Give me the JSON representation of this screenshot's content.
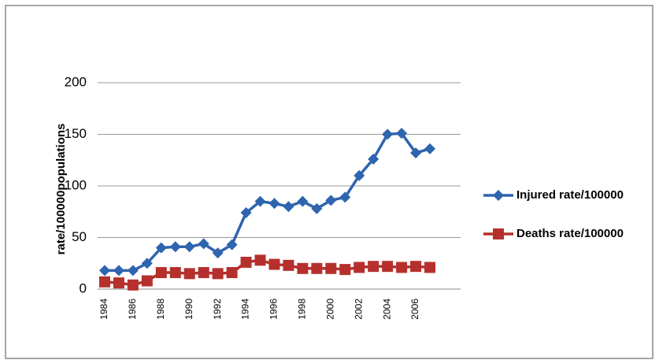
{
  "chart_data": {
    "type": "line",
    "y_label": "rate/100000populations",
    "categories": [
      "1984",
      null,
      "1986",
      null,
      "1988",
      null,
      "1990",
      null,
      "1992",
      null,
      "1994",
      null,
      "1996",
      null,
      "1998",
      null,
      "2000",
      null,
      "2002",
      null,
      "2004",
      null,
      "2006",
      null
    ],
    "series": [
      {
        "name": "Injured rate/100000",
        "color": "#2f64ae",
        "marker": "diamond",
        "values": [
          18,
          18,
          18,
          25,
          40,
          41,
          41,
          44,
          35,
          43,
          74,
          85,
          83,
          80,
          85,
          78,
          86,
          89,
          110,
          126,
          150,
          151,
          132,
          136
        ]
      },
      {
        "name": "Deaths rate/100000",
        "color": "#b5302c",
        "marker": "square",
        "values": [
          7,
          6,
          4,
          8,
          16,
          16,
          15,
          16,
          15,
          16,
          26,
          28,
          24,
          23,
          20,
          20,
          20,
          19,
          21,
          22,
          22,
          21,
          22,
          21
        ]
      }
    ],
    "ylim": [
      0,
      200
    ],
    "yticks": [
      0,
      50,
      100,
      150,
      200
    ],
    "grid": true,
    "legend": "right"
  }
}
